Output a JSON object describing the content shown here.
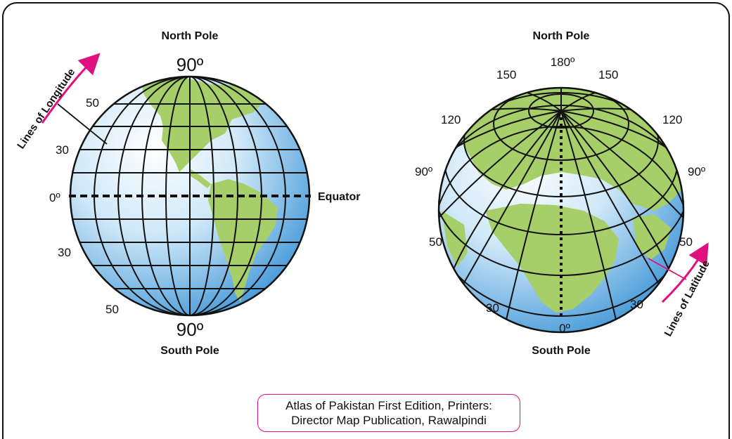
{
  "colors": {
    "ocean_light": "#eaf5fc",
    "ocean_dark": "#3b93d6",
    "land": "#a6cf6a",
    "grid": "#111111",
    "accent": "#e0117f",
    "frame": "#111111"
  },
  "left_globe": {
    "top_label": "North Pole",
    "bottom_label": "South Pole",
    "top_degree": "90º",
    "bottom_degree": "90º",
    "equator_degree": "0º",
    "equator_label": "Equator",
    "scale_labels": [
      "50",
      "30",
      "30",
      "50"
    ],
    "callout": "Lines of Longitude"
  },
  "right_globe": {
    "top_label": "North Pole",
    "bottom_label": "South Pole",
    "degree_labels": [
      "180º",
      "150",
      "150",
      "120",
      "120",
      "90º",
      "90º",
      "50",
      "50",
      "30",
      "30",
      "0º"
    ],
    "callout": "Lines of Latitude"
  },
  "credit": {
    "line1": "Atlas of Pakistan First Edition, Printers:",
    "line2": "Director Map Publication, Rawalpindi"
  }
}
